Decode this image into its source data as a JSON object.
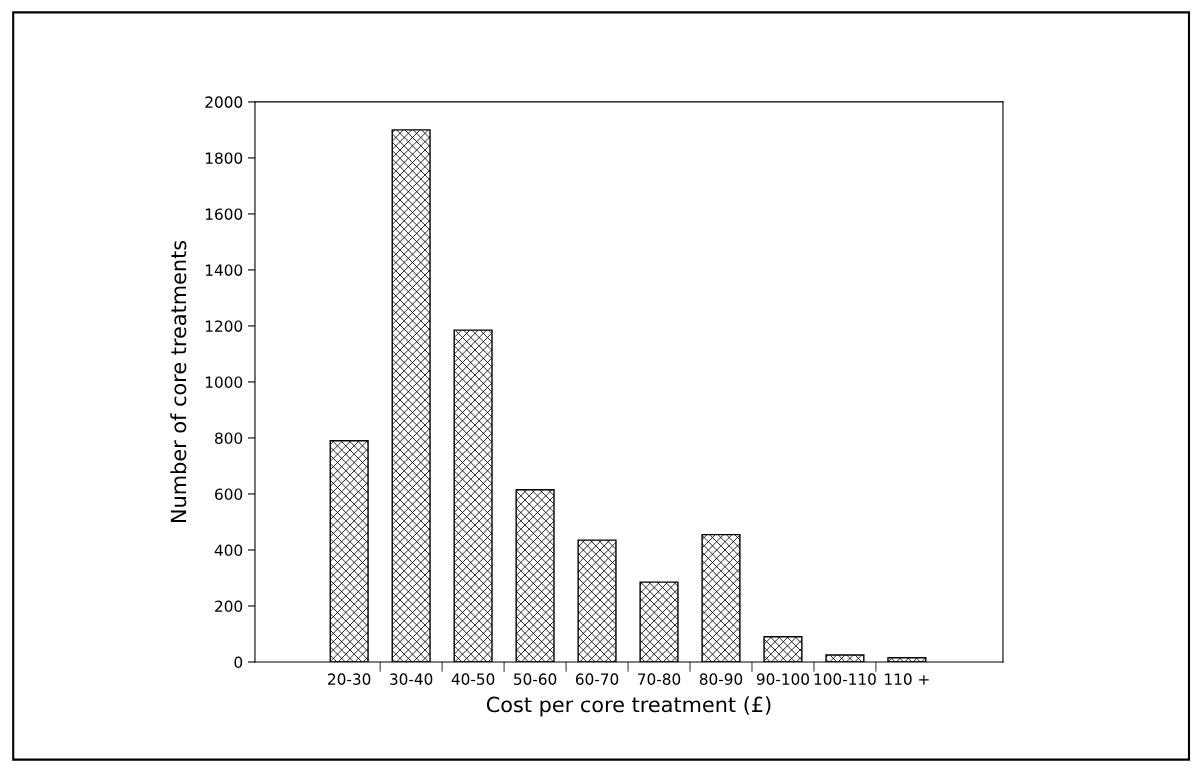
{
  "chart_data": {
    "type": "bar",
    "xlabel": "Cost per core treatment (£)",
    "ylabel": "Number of core treatments",
    "categories": [
      "20-30",
      "30-40",
      "40-50",
      "50-60",
      "60-70",
      "70-80",
      "80-90",
      "90-100",
      "100-110",
      "110 +"
    ],
    "values": [
      790,
      1900,
      1185,
      615,
      435,
      285,
      455,
      90,
      25,
      15
    ],
    "color": "#000000",
    "ylim": [
      0,
      2000
    ],
    "yticks": [
      0,
      200,
      400,
      600,
      800,
      1000,
      1200,
      1400,
      1600,
      1800,
      2000
    ],
    "grid": false
  }
}
